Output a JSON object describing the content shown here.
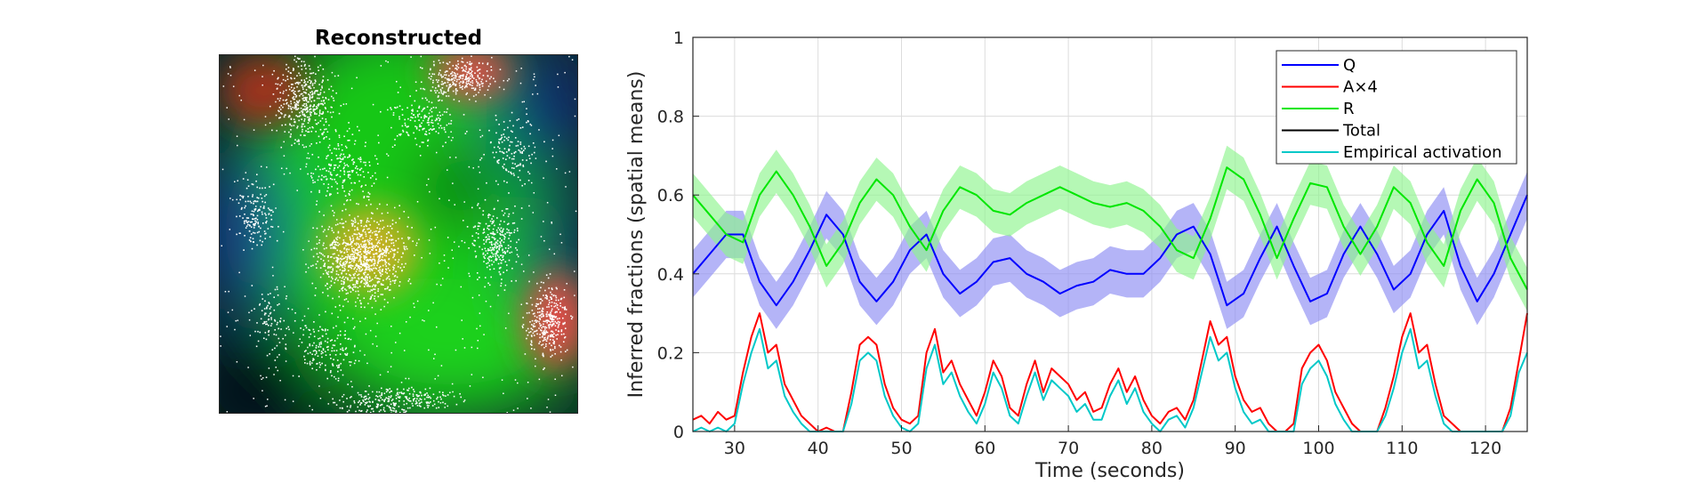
{
  "left_panel": {
    "title": "Reconstructed"
  },
  "chart_data": {
    "type": "line",
    "title": "",
    "xlabel": "Time (seconds)",
    "ylabel": "Inferred fractions (spatial means)",
    "xlim": [
      25,
      125
    ],
    "ylim": [
      0,
      1
    ],
    "xticks": [
      30,
      40,
      50,
      60,
      70,
      80,
      90,
      100,
      110,
      120
    ],
    "yticks": [
      0,
      0.2,
      0.4,
      0.6,
      0.8,
      1
    ],
    "grid": true,
    "legend_position": "top-right",
    "series": [
      {
        "name": "Q",
        "color": "#0000ff",
        "band_color": "#8c8cf2",
        "x": [
          25,
          27,
          29,
          31,
          33,
          35,
          37,
          39,
          41,
          43,
          45,
          47,
          49,
          51,
          53,
          55,
          57,
          59,
          61,
          63,
          65,
          67,
          69,
          71,
          73,
          75,
          77,
          79,
          81,
          83,
          85,
          87,
          89,
          91,
          93,
          95,
          97,
          99,
          101,
          103,
          105,
          107,
          109,
          111,
          113,
          115,
          117,
          119,
          121,
          123,
          125
        ],
        "y": [
          0.4,
          0.45,
          0.5,
          0.5,
          0.38,
          0.32,
          0.38,
          0.46,
          0.55,
          0.5,
          0.38,
          0.33,
          0.38,
          0.46,
          0.5,
          0.4,
          0.35,
          0.38,
          0.43,
          0.44,
          0.4,
          0.38,
          0.35,
          0.37,
          0.38,
          0.41,
          0.4,
          0.4,
          0.44,
          0.5,
          0.52,
          0.45,
          0.32,
          0.35,
          0.44,
          0.52,
          0.42,
          0.33,
          0.35,
          0.45,
          0.52,
          0.45,
          0.36,
          0.4,
          0.5,
          0.56,
          0.42,
          0.33,
          0.4,
          0.5,
          0.6
        ],
        "band_halfwidth": 0.06
      },
      {
        "name": "A×4",
        "color": "#ff0000",
        "x": [
          25,
          26,
          27,
          28,
          29,
          30,
          31,
          32,
          33,
          34,
          35,
          36,
          37,
          38,
          39,
          40,
          41,
          42,
          43,
          44,
          45,
          46,
          47,
          48,
          49,
          50,
          51,
          52,
          53,
          54,
          55,
          56,
          57,
          58,
          59,
          60,
          61,
          62,
          63,
          64,
          65,
          66,
          67,
          68,
          69,
          70,
          71,
          72,
          73,
          74,
          75,
          76,
          77,
          78,
          79,
          80,
          81,
          82,
          83,
          84,
          85,
          86,
          87,
          88,
          89,
          90,
          91,
          92,
          93,
          94,
          95,
          96,
          97,
          98,
          99,
          100,
          101,
          102,
          103,
          104,
          105,
          106,
          107,
          108,
          109,
          110,
          111,
          112,
          113,
          114,
          115,
          116,
          117,
          118,
          119,
          120,
          121,
          122,
          123,
          124,
          125
        ],
        "y": [
          0.03,
          0.04,
          0.02,
          0.05,
          0.03,
          0.04,
          0.15,
          0.24,
          0.3,
          0.2,
          0.22,
          0.12,
          0.08,
          0.04,
          0.02,
          0.0,
          0.01,
          0.0,
          0.0,
          0.1,
          0.22,
          0.24,
          0.22,
          0.12,
          0.06,
          0.03,
          0.02,
          0.04,
          0.2,
          0.26,
          0.15,
          0.18,
          0.12,
          0.08,
          0.04,
          0.1,
          0.18,
          0.14,
          0.06,
          0.04,
          0.12,
          0.18,
          0.1,
          0.16,
          0.14,
          0.12,
          0.08,
          0.1,
          0.05,
          0.06,
          0.12,
          0.16,
          0.1,
          0.14,
          0.08,
          0.04,
          0.02,
          0.05,
          0.06,
          0.03,
          0.08,
          0.18,
          0.28,
          0.22,
          0.24,
          0.14,
          0.08,
          0.05,
          0.06,
          0.02,
          0.0,
          0.0,
          0.02,
          0.16,
          0.2,
          0.22,
          0.18,
          0.1,
          0.06,
          0.02,
          0.0,
          0.0,
          0.0,
          0.06,
          0.14,
          0.24,
          0.3,
          0.2,
          0.22,
          0.12,
          0.04,
          0.02,
          0.0,
          0.0,
          0.0,
          0.0,
          0.0,
          0.0,
          0.06,
          0.18,
          0.3
        ]
      },
      {
        "name": "R",
        "color": "#00e600",
        "band_color": "#8df58d",
        "x": [
          25,
          27,
          29,
          31,
          33,
          35,
          37,
          39,
          41,
          43,
          45,
          47,
          49,
          51,
          53,
          55,
          57,
          59,
          61,
          63,
          65,
          67,
          69,
          71,
          73,
          75,
          77,
          79,
          81,
          83,
          85,
          87,
          89,
          91,
          93,
          95,
          97,
          99,
          101,
          103,
          105,
          107,
          109,
          111,
          113,
          115,
          117,
          119,
          121,
          123,
          125
        ],
        "y": [
          0.6,
          0.55,
          0.5,
          0.48,
          0.6,
          0.66,
          0.6,
          0.52,
          0.42,
          0.48,
          0.58,
          0.64,
          0.6,
          0.52,
          0.46,
          0.56,
          0.62,
          0.6,
          0.56,
          0.55,
          0.58,
          0.6,
          0.62,
          0.6,
          0.58,
          0.57,
          0.58,
          0.56,
          0.52,
          0.46,
          0.44,
          0.54,
          0.67,
          0.64,
          0.55,
          0.44,
          0.54,
          0.63,
          0.62,
          0.52,
          0.45,
          0.52,
          0.62,
          0.58,
          0.48,
          0.42,
          0.56,
          0.64,
          0.58,
          0.44,
          0.36
        ],
        "band_halfwidth": 0.055
      },
      {
        "name": "Total",
        "color": "#000000",
        "x": [],
        "y": []
      },
      {
        "name": "Empirical activation",
        "color": "#00c8c8",
        "x": [
          25,
          26,
          27,
          28,
          29,
          30,
          31,
          32,
          33,
          34,
          35,
          36,
          37,
          38,
          39,
          40,
          41,
          42,
          43,
          44,
          45,
          46,
          47,
          48,
          49,
          50,
          51,
          52,
          53,
          54,
          55,
          56,
          57,
          58,
          59,
          60,
          61,
          62,
          63,
          64,
          65,
          66,
          67,
          68,
          69,
          70,
          71,
          72,
          73,
          74,
          75,
          76,
          77,
          78,
          79,
          80,
          81,
          82,
          83,
          84,
          85,
          86,
          87,
          88,
          89,
          90,
          91,
          92,
          93,
          94,
          95,
          96,
          97,
          98,
          99,
          100,
          101,
          102,
          103,
          104,
          105,
          106,
          107,
          108,
          109,
          110,
          111,
          112,
          113,
          114,
          115,
          116,
          117,
          118,
          119,
          120,
          121,
          122,
          123,
          124,
          125
        ],
        "y": [
          0.0,
          0.01,
          0.0,
          0.01,
          0.0,
          0.02,
          0.12,
          0.2,
          0.26,
          0.16,
          0.18,
          0.09,
          0.05,
          0.02,
          0.0,
          0.0,
          0.0,
          0.0,
          0.0,
          0.07,
          0.18,
          0.2,
          0.18,
          0.09,
          0.04,
          0.01,
          0.0,
          0.02,
          0.16,
          0.22,
          0.12,
          0.15,
          0.09,
          0.05,
          0.02,
          0.07,
          0.15,
          0.11,
          0.04,
          0.02,
          0.09,
          0.15,
          0.08,
          0.13,
          0.11,
          0.09,
          0.05,
          0.07,
          0.03,
          0.03,
          0.09,
          0.13,
          0.07,
          0.11,
          0.05,
          0.02,
          0.0,
          0.03,
          0.04,
          0.01,
          0.06,
          0.15,
          0.24,
          0.18,
          0.2,
          0.11,
          0.05,
          0.02,
          0.03,
          0.0,
          0.0,
          0.0,
          0.0,
          0.12,
          0.16,
          0.18,
          0.14,
          0.07,
          0.03,
          0.0,
          0.0,
          0.0,
          0.0,
          0.04,
          0.11,
          0.2,
          0.26,
          0.16,
          0.18,
          0.09,
          0.02,
          0.0,
          0.0,
          0.0,
          0.0,
          0.0,
          0.0,
          0.0,
          0.04,
          0.15,
          0.2
        ]
      }
    ]
  }
}
